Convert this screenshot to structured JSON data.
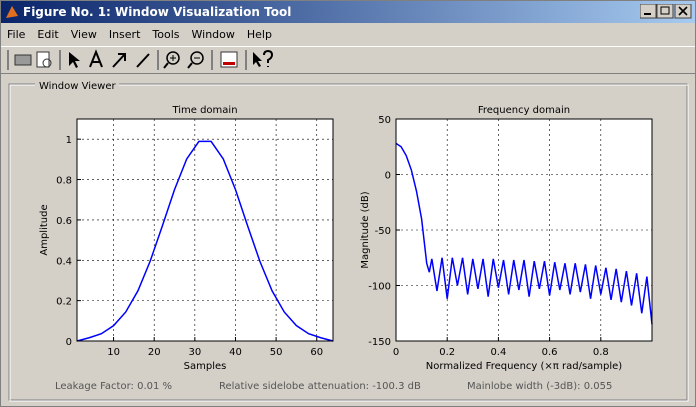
{
  "window": {
    "title": "Figure No. 1: Window Visualization Tool",
    "menu": [
      "File",
      "Edit",
      "View",
      "Insert",
      "Tools",
      "Window",
      "Help"
    ]
  },
  "panel_title": "Window Viewer",
  "charts": [
    {
      "type": "line",
      "title": "Time domain",
      "x_label": "Samples",
      "y_label": "Amplitude",
      "xlim": [
        1,
        64
      ],
      "ylim": [
        0,
        1.1
      ],
      "xticks": [
        10,
        20,
        30,
        40,
        50,
        60
      ],
      "yticks": [
        0,
        0.2,
        0.4,
        0.6,
        0.8,
        1
      ],
      "grid": true,
      "x": [
        1,
        4,
        7,
        10,
        13,
        16,
        19,
        22,
        25,
        28,
        31,
        34,
        37,
        40,
        43,
        46,
        49,
        52,
        55,
        58,
        61,
        64
      ],
      "series": [
        {
          "color": "#0000ff",
          "values": [
            0.0,
            0.016,
            0.036,
            0.076,
            0.144,
            0.249,
            0.395,
            0.57,
            0.75,
            0.902,
            0.989,
            0.989,
            0.902,
            0.75,
            0.57,
            0.395,
            0.249,
            0.144,
            0.076,
            0.036,
            0.016,
            0.0
          ]
        }
      ]
    },
    {
      "type": "line",
      "title": "Frequency domain",
      "x_label": "Normalized Frequency  (×π rad/sample)",
      "y_label": "Magnitude (dB)",
      "xlim": [
        0,
        1
      ],
      "ylim": [
        -150,
        50
      ],
      "xticks": [
        0,
        0.2,
        0.4,
        0.6,
        0.8
      ],
      "yticks": [
        -150,
        -100,
        -50,
        0,
        50
      ],
      "grid": true,
      "x": [
        0,
        0.02,
        0.04,
        0.06,
        0.08,
        0.1,
        0.12,
        0.13,
        0.14,
        0.16,
        0.18,
        0.2,
        0.22,
        0.24,
        0.26,
        0.28,
        0.3,
        0.32,
        0.34,
        0.36,
        0.38,
        0.4,
        0.42,
        0.44,
        0.46,
        0.48,
        0.5,
        0.52,
        0.54,
        0.56,
        0.58,
        0.6,
        0.62,
        0.64,
        0.66,
        0.68,
        0.7,
        0.72,
        0.74,
        0.76,
        0.78,
        0.8,
        0.82,
        0.84,
        0.86,
        0.88,
        0.9,
        0.92,
        0.94,
        0.96,
        0.98,
        1.0
      ],
      "series": [
        {
          "color": "#0000ff",
          "values": [
            28,
            25,
            17,
            4,
            -15,
            -40,
            -80,
            -88,
            -76,
            -105,
            -75,
            -112,
            -75,
            -100,
            -75,
            -108,
            -76,
            -103,
            -76,
            -110,
            -76,
            -102,
            -77,
            -108,
            -77,
            -104,
            -77,
            -110,
            -78,
            -103,
            -78,
            -109,
            -79,
            -104,
            -80,
            -108,
            -80,
            -106,
            -81,
            -112,
            -82,
            -108,
            -84,
            -113,
            -85,
            -115,
            -87,
            -118,
            -89,
            -125,
            -92,
            -135
          ]
        }
      ]
    }
  ],
  "status": {
    "leakage": "Leakage Factor: 0.01 %",
    "attenuation": "Relative sidelobe attenuation: -100.3 dB",
    "mainlobe": "Mainlobe width (-3dB): 0.055"
  }
}
